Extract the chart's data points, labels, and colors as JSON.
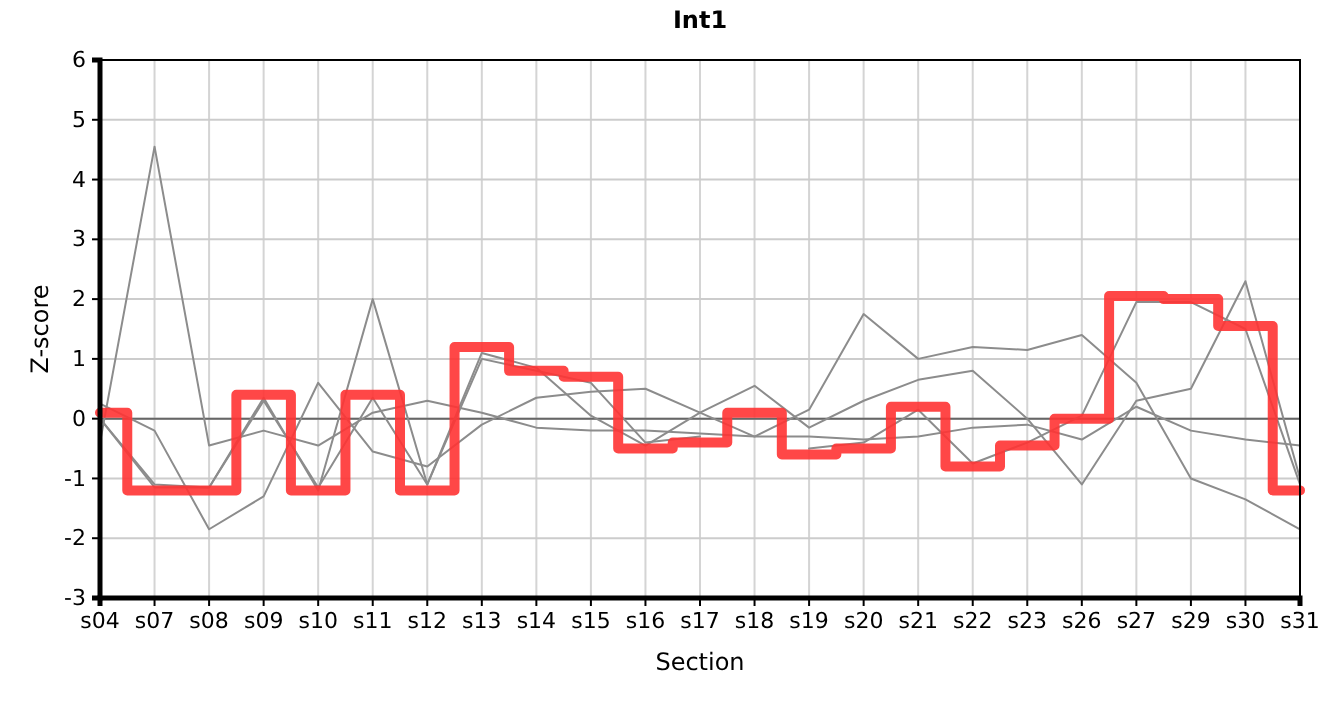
{
  "chart_data": {
    "type": "line",
    "title": "Int1",
    "xlabel": "Section",
    "ylabel": "Z-score",
    "categories": [
      "s04",
      "s07",
      "s08",
      "s09",
      "s10",
      "s11",
      "s12",
      "s13",
      "s14",
      "s15",
      "s16",
      "s17",
      "s18",
      "s19",
      "s20",
      "s21",
      "s22",
      "s23",
      "s26",
      "s27",
      "s29",
      "s30",
      "s31"
    ],
    "ylim": [
      -3,
      6
    ],
    "yticks": [
      -3,
      -2,
      -1,
      0,
      1,
      2,
      3,
      4,
      5,
      6
    ],
    "grid": true,
    "ref_lines": [
      {
        "axis": "y",
        "value": 0,
        "color": "#666666"
      }
    ],
    "series": [
      {
        "color": "#8c8c8c",
        "values": [
          -0.4,
          4.55,
          -0.45,
          -0.2,
          -0.45,
          0.1,
          0.3,
          0.1,
          -0.15,
          -0.2,
          -0.2,
          -0.25,
          -0.3,
          -0.3,
          -0.35,
          -0.3,
          -0.15,
          -0.1,
          -0.35,
          0.2,
          -0.2,
          -0.35,
          -0.45
        ]
      },
      {
        "color": "#8c8c8c",
        "values": [
          0.25,
          -0.2,
          -1.85,
          -1.3,
          0.6,
          -0.55,
          -0.8,
          -0.1,
          0.35,
          0.45,
          0.5,
          0.1,
          -0.3,
          0.15,
          1.75,
          1.0,
          1.2,
          1.15,
          1.4,
          0.6,
          -1.0,
          -1.35,
          -1.85
        ]
      },
      {
        "color": "#8c8c8c",
        "values": [
          0.0,
          -1.1,
          -1.15,
          0.35,
          -1.2,
          2.0,
          -1.1,
          1.1,
          0.85,
          0.05,
          -0.45,
          0.1,
          0.55,
          -0.15,
          0.3,
          0.65,
          0.8,
          0.0,
          -1.1,
          0.3,
          0.5,
          2.3,
          -1.0
        ]
      },
      {
        "color": "#8c8c8c",
        "values": [
          0.0,
          -1.15,
          -1.15,
          0.3,
          -1.15,
          0.35,
          -1.1,
          1.0,
          0.8,
          0.6,
          -0.4,
          -0.3,
          null,
          -0.5,
          -0.4,
          0.15,
          -0.75,
          -0.4,
          0.05,
          1.95,
          1.95,
          1.5,
          -1.1
        ]
      },
      {
        "type": "step",
        "color": "#ff3333",
        "values": [
          0.1,
          -1.2,
          -1.2,
          0.4,
          -1.2,
          0.4,
          -1.2,
          1.2,
          0.8,
          0.7,
          -0.5,
          -0.4,
          0.1,
          -0.6,
          -0.5,
          0.2,
          -0.8,
          -0.45,
          0.0,
          2.05,
          2.0,
          1.55,
          -1.2
        ]
      }
    ]
  }
}
